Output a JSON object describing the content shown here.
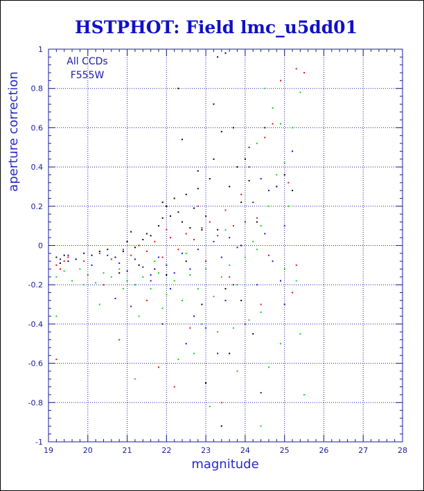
{
  "chart_data": {
    "type": "scatter",
    "title": "HSTPHOT: Field lmc_u5dd01",
    "xlabel": "magnitude",
    "ylabel": "aperture correction",
    "annotations": [
      "All CCDs",
      "F555W"
    ],
    "xlim": [
      19,
      28
    ],
    "ylim": [
      -1,
      1
    ],
    "x_ticks": [
      "19",
      "20",
      "21",
      "22",
      "23",
      "24",
      "25",
      "26",
      "27",
      "28"
    ],
    "y_ticks": [
      "-1",
      "-0.8",
      "-0.6",
      "-0.4",
      "-0.2",
      "0",
      "0.2",
      "0.4",
      "0.6",
      "0.8",
      "1"
    ],
    "grid": true,
    "colors": {
      "axis": "#1a1aa0",
      "grid": "#1a1aa0",
      "title": "#1010c8",
      "label": "#2828c8"
    },
    "series": [
      {
        "color": "#000000",
        "points": [
          [
            19.2,
            -0.06
          ],
          [
            19.3,
            -0.09
          ],
          [
            19.4,
            -0.05
          ],
          [
            19.5,
            -0.08
          ],
          [
            19.7,
            -0.07
          ],
          [
            19.9,
            -0.04
          ],
          [
            20.1,
            -0.05
          ],
          [
            20.3,
            -0.03
          ],
          [
            20.5,
            -0.02
          ],
          [
            20.7,
            -0.06
          ],
          [
            20.9,
            -0.03
          ],
          [
            21.0,
            0.02
          ],
          [
            21.2,
            -0.01
          ],
          [
            21.4,
            0.03
          ],
          [
            21.5,
            0.06
          ],
          [
            21.6,
            0.05
          ],
          [
            21.8,
            0.1
          ],
          [
            21.9,
            0.14
          ],
          [
            22.0,
            0.2
          ],
          [
            22.1,
            0.15
          ],
          [
            22.2,
            0.24
          ],
          [
            22.3,
            0.17
          ],
          [
            22.4,
            0.12
          ],
          [
            22.5,
            0.26
          ],
          [
            22.6,
            0.09
          ],
          [
            22.7,
            0.19
          ],
          [
            22.8,
            0.29
          ],
          [
            22.9,
            0.08
          ],
          [
            23.0,
            0.15
          ],
          [
            23.1,
            0.34
          ],
          [
            23.2,
            0.44
          ],
          [
            23.3,
            0.96
          ],
          [
            23.4,
            0.58
          ],
          [
            23.5,
            0.98
          ],
          [
            23.6,
            0.3
          ],
          [
            23.7,
            0.6
          ],
          [
            23.8,
            0.4
          ],
          [
            23.9,
            0.22
          ],
          [
            24.0,
            0.44
          ],
          [
            24.1,
            0.33
          ],
          [
            24.3,
            0.12
          ],
          [
            24.5,
            0.6
          ],
          [
            24.8,
            0.3
          ],
          [
            25.0,
            0.36
          ],
          [
            25.2,
            0.28
          ],
          [
            22.3,
            0.8
          ],
          [
            23.2,
            0.72
          ],
          [
            22.4,
            0.54
          ],
          [
            21.3,
            -0.1
          ],
          [
            21.7,
            -0.12
          ],
          [
            22.0,
            -0.15
          ],
          [
            22.5,
            -0.08
          ],
          [
            20.8,
            -0.14
          ],
          [
            23.5,
            -0.22
          ],
          [
            22.9,
            -0.3
          ],
          [
            24.2,
            -0.45
          ],
          [
            23.0,
            -0.7
          ],
          [
            23.4,
            -0.92
          ],
          [
            23.9,
            -0.28
          ],
          [
            23.6,
            -0.55
          ],
          [
            21.1,
            0.07
          ],
          [
            21.9,
            0.22
          ],
          [
            22.8,
            0.38
          ],
          [
            23.3,
            0.08
          ]
        ]
      },
      {
        "color": "#e01010",
        "points": [
          [
            19.2,
            -0.1
          ],
          [
            19.3,
            -0.12
          ],
          [
            19.4,
            -0.08
          ],
          [
            19.5,
            -0.06
          ],
          [
            19.9,
            -0.08
          ],
          [
            20.3,
            -0.04
          ],
          [
            20.6,
            -0.07
          ],
          [
            20.9,
            -0.02
          ],
          [
            21.1,
            -0.05
          ],
          [
            21.3,
            0.0
          ],
          [
            21.5,
            -0.03
          ],
          [
            21.7,
            0.02
          ],
          [
            21.9,
            -0.06
          ],
          [
            22.1,
            0.04
          ],
          [
            22.3,
            -0.02
          ],
          [
            22.5,
            0.06
          ],
          [
            22.7,
            0.03
          ],
          [
            22.9,
            0.09
          ],
          [
            23.1,
            0.12
          ],
          [
            23.3,
            0.05
          ],
          [
            23.5,
            0.18
          ],
          [
            23.7,
            0.1
          ],
          [
            23.9,
            0.26
          ],
          [
            24.1,
            0.4
          ],
          [
            24.3,
            0.14
          ],
          [
            24.5,
            0.55
          ],
          [
            24.7,
            0.62
          ],
          [
            24.9,
            0.84
          ],
          [
            25.1,
            0.32
          ],
          [
            25.3,
            0.9
          ],
          [
            25.5,
            0.88
          ],
          [
            22.8,
            0.2
          ],
          [
            21.5,
            -0.28
          ],
          [
            20.4,
            -0.2
          ],
          [
            19.2,
            -0.58
          ],
          [
            22.6,
            -0.42
          ],
          [
            23.6,
            -0.16
          ],
          [
            24.0,
            -0.4
          ],
          [
            24.4,
            -0.3
          ],
          [
            25.3,
            -0.1
          ],
          [
            23.4,
            -0.8
          ],
          [
            22.2,
            -0.72
          ],
          [
            21.8,
            -0.62
          ],
          [
            20.8,
            -0.48
          ],
          [
            24.6,
            -0.05
          ],
          [
            25.2,
            -0.24
          ],
          [
            23.9,
            0.0
          ],
          [
            22.0,
            0.08
          ]
        ]
      },
      {
        "color": "#1010d0",
        "points": [
          [
            19.3,
            -0.07
          ],
          [
            19.5,
            -0.05
          ],
          [
            20.1,
            -0.1
          ],
          [
            20.5,
            -0.05
          ],
          [
            20.8,
            -0.09
          ],
          [
            21.0,
            -0.13
          ],
          [
            21.2,
            -0.07
          ],
          [
            21.4,
            -0.11
          ],
          [
            21.6,
            -0.15
          ],
          [
            21.8,
            -0.06
          ],
          [
            22.0,
            -0.1
          ],
          [
            22.2,
            -0.14
          ],
          [
            22.4,
            -0.04
          ],
          [
            22.6,
            -0.12
          ],
          [
            22.8,
            -0.02
          ],
          [
            23.0,
            -0.08
          ],
          [
            23.2,
            0.02
          ],
          [
            23.4,
            -0.06
          ],
          [
            23.6,
            0.04
          ],
          [
            23.8,
            -0.01
          ],
          [
            24.0,
            0.12
          ],
          [
            24.2,
            0.22
          ],
          [
            24.4,
            0.34
          ],
          [
            24.6,
            0.28
          ],
          [
            24.8,
            0.3
          ],
          [
            25.0,
            0.1
          ],
          [
            25.2,
            0.48
          ],
          [
            24.1,
            0.5
          ],
          [
            23.9,
            0.0
          ],
          [
            22.1,
            -0.22
          ],
          [
            21.1,
            -0.31
          ],
          [
            22.7,
            -0.36
          ],
          [
            23.5,
            -0.28
          ],
          [
            24.3,
            -0.2
          ],
          [
            24.9,
            -0.18
          ],
          [
            23.0,
            -0.42
          ],
          [
            21.9,
            -0.4
          ],
          [
            20.7,
            -0.27
          ],
          [
            24.7,
            -0.08
          ],
          [
            25.0,
            -0.3
          ],
          [
            23.7,
            -0.2
          ],
          [
            24.5,
            0.06
          ],
          [
            24.4,
            -0.75
          ],
          [
            23.3,
            -0.55
          ],
          [
            22.5,
            -0.5
          ],
          [
            21.6,
            -0.18
          ]
        ]
      },
      {
        "color": "#10d010",
        "points": [
          [
            19.2,
            -0.16
          ],
          [
            19.4,
            -0.13
          ],
          [
            19.6,
            -0.18
          ],
          [
            19.8,
            -0.12
          ],
          [
            20.0,
            -0.15
          ],
          [
            20.2,
            -0.19
          ],
          [
            20.4,
            -0.14
          ],
          [
            20.6,
            -0.16
          ],
          [
            20.8,
            -0.12
          ],
          [
            21.0,
            -0.18
          ],
          [
            21.2,
            -0.2
          ],
          [
            21.4,
            -0.16
          ],
          [
            21.6,
            -0.22
          ],
          [
            21.8,
            -0.14
          ],
          [
            22.0,
            -0.25
          ],
          [
            22.2,
            -0.18
          ],
          [
            22.4,
            -0.28
          ],
          [
            22.6,
            -0.15
          ],
          [
            22.8,
            -0.22
          ],
          [
            23.0,
            -0.12
          ],
          [
            23.2,
            -0.26
          ],
          [
            23.4,
            -0.16
          ],
          [
            23.6,
            -0.1
          ],
          [
            23.8,
            -0.2
          ],
          [
            24.0,
            -0.06
          ],
          [
            24.2,
            0.02
          ],
          [
            24.4,
            0.1
          ],
          [
            24.6,
            0.2
          ],
          [
            24.8,
            0.36
          ],
          [
            25.0,
            0.42
          ],
          [
            25.2,
            0.6
          ],
          [
            25.4,
            0.78
          ],
          [
            24.7,
            0.7
          ],
          [
            24.9,
            0.62
          ],
          [
            24.3,
            0.52
          ],
          [
            25.1,
            0.2
          ],
          [
            24.5,
            0.8
          ],
          [
            21.3,
            -0.36
          ],
          [
            20.3,
            -0.3
          ],
          [
            19.2,
            -0.36
          ],
          [
            22.9,
            -0.4
          ],
          [
            21.9,
            -0.32
          ],
          [
            23.3,
            -0.44
          ],
          [
            24.1,
            -0.38
          ],
          [
            22.7,
            -0.55
          ],
          [
            24.4,
            -0.34
          ],
          [
            25.3,
            -0.18
          ],
          [
            25.4,
            -0.45
          ],
          [
            23.8,
            -0.64
          ],
          [
            24.6,
            -0.62
          ],
          [
            24.9,
            -0.5
          ],
          [
            22.3,
            -0.58
          ],
          [
            21.2,
            -0.68
          ],
          [
            23.1,
            -0.82
          ],
          [
            24.4,
            -0.92
          ],
          [
            25.5,
            -0.76
          ],
          [
            23.7,
            -0.42
          ],
          [
            22.5,
            -0.04
          ],
          [
            21.7,
            -0.08
          ],
          [
            20.9,
            -0.22
          ],
          [
            19.9,
            -0.2
          ],
          [
            23.5,
            0.08
          ],
          [
            24.3,
            -0.02
          ],
          [
            25.0,
            -0.12
          ]
        ]
      }
    ]
  }
}
